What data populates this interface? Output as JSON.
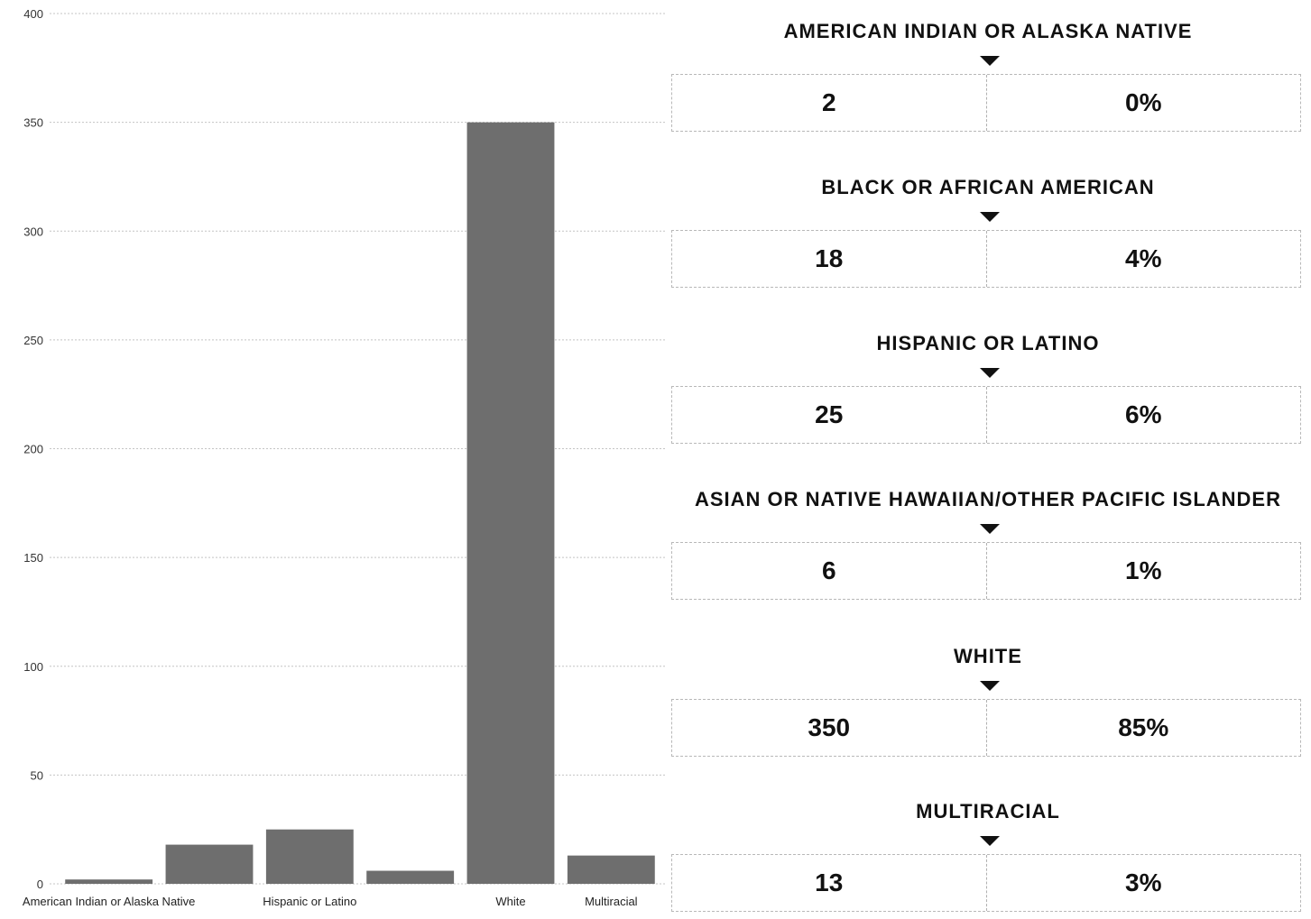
{
  "chart_data": {
    "type": "bar",
    "categories": [
      "American Indian or Alaska Native",
      "Black or African American",
      "Hispanic or Latino",
      "Asian or Native Hawaiian/Other Pacific Islander",
      "White",
      "Multiracial"
    ],
    "values": [
      2,
      18,
      25,
      6,
      350,
      13
    ],
    "shown_tick_labels": [
      "American Indian or Alaska Native",
      "",
      "Hispanic or Latino",
      "",
      "White",
      "Multiracial"
    ],
    "ylim": [
      0,
      400
    ],
    "yticks": [
      0,
      50,
      100,
      150,
      200,
      250,
      300,
      350,
      400
    ],
    "grid": true,
    "bar_color": "#6e6e6e",
    "title": "",
    "xlabel": "",
    "ylabel": ""
  },
  "summary": [
    {
      "title": "AMERICAN INDIAN OR ALASKA NATIVE",
      "count": "2",
      "percent": "0%"
    },
    {
      "title": "BLACK OR AFRICAN AMERICAN",
      "count": "18",
      "percent": "4%"
    },
    {
      "title": "HISPANIC OR LATINO",
      "count": "25",
      "percent": "6%"
    },
    {
      "title": "ASIAN OR NATIVE HAWAIIAN/OTHER PACIFIC ISLANDER",
      "count": "6",
      "percent": "1%"
    },
    {
      "title": "WHITE",
      "count": "350",
      "percent": "85%"
    },
    {
      "title": "MULTIRACIAL",
      "count": "13",
      "percent": "3%"
    }
  ]
}
